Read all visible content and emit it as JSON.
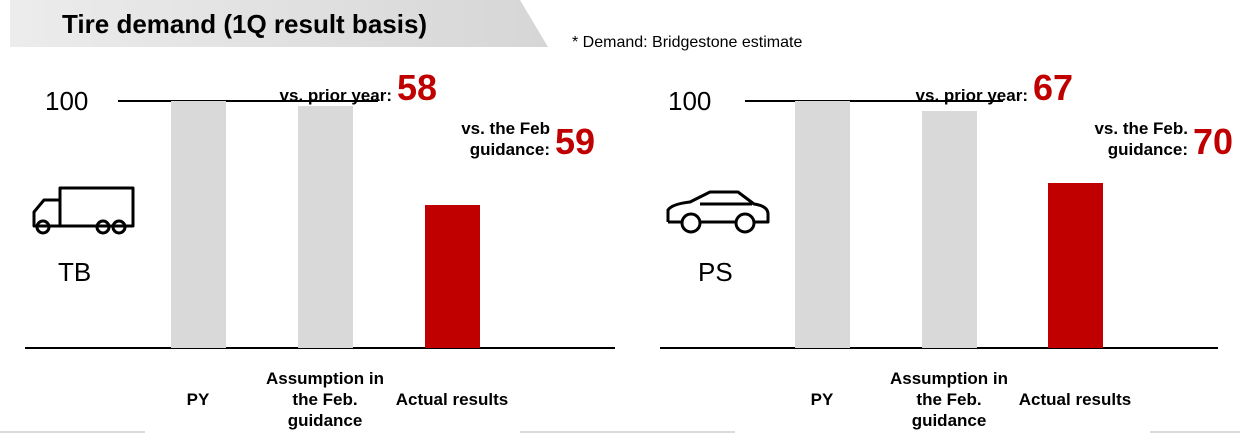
{
  "title": "Tire demand (1Q result basis)",
  "note": "* Demand: Bridgestone estimate",
  "chart_data": [
    {
      "type": "bar",
      "label": "TB",
      "categories": [
        "PY",
        "Assumption in the Feb. guidance",
        "Actual results"
      ],
      "values": [
        100,
        98,
        58
      ],
      "colors": [
        "#d9d9d9",
        "#d9d9d9",
        "#c00000"
      ],
      "ylim": [
        0,
        100
      ],
      "yticks": [
        100
      ],
      "annotations": [
        {
          "label": "vs. prior year:",
          "value": 58
        },
        {
          "label": "vs. the Feb guidance:",
          "value": 59
        }
      ]
    },
    {
      "type": "bar",
      "label": "PS",
      "categories": [
        "PY",
        "Assumption in the Feb. guidance",
        "Actual results"
      ],
      "values": [
        100,
        96,
        67
      ],
      "colors": [
        "#d9d9d9",
        "#d9d9d9",
        "#c00000"
      ],
      "ylim": [
        0,
        100
      ],
      "yticks": [
        100
      ],
      "annotations": [
        {
          "label": "vs. prior year:",
          "value": 67
        },
        {
          "label": "vs. the Feb. guidance:",
          "value": 70
        }
      ]
    }
  ]
}
